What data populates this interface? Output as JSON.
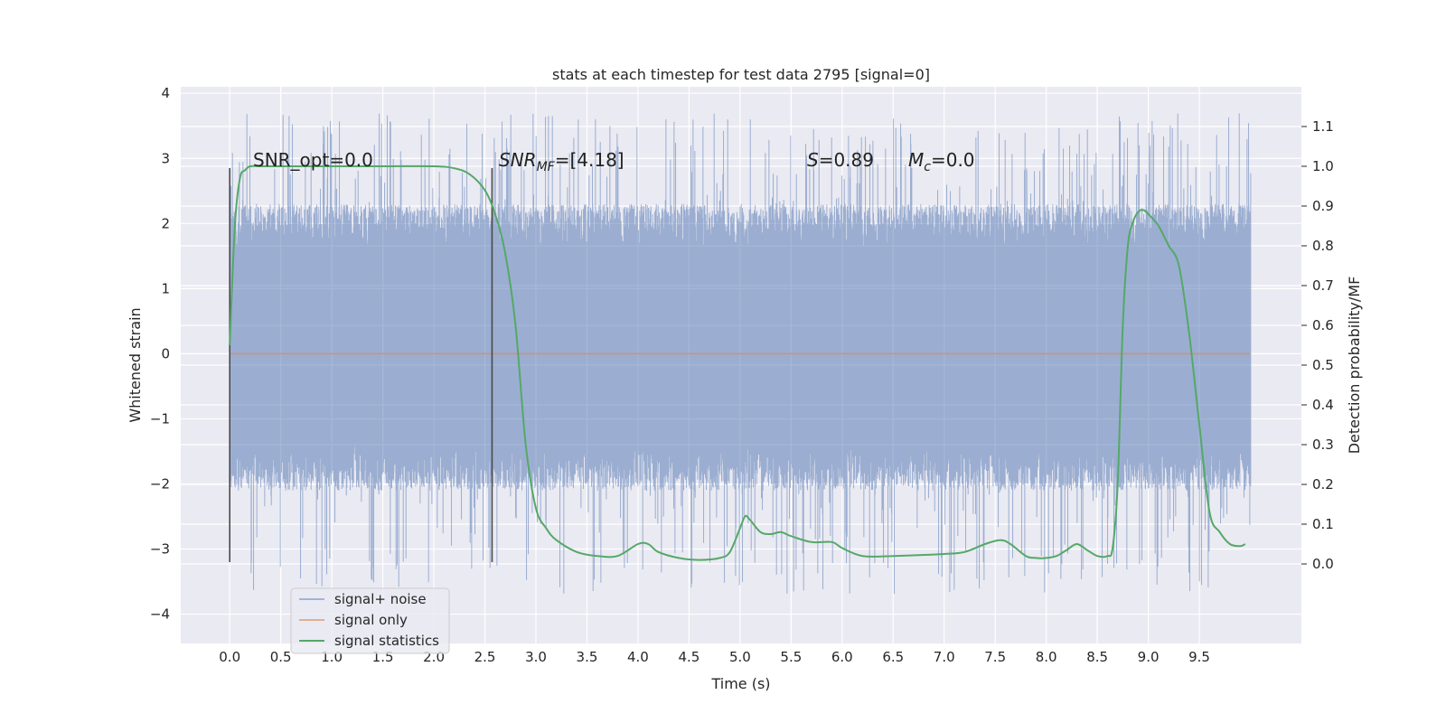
{
  "chart_data": {
    "type": "line",
    "title": "stats at each timestep for test data 2795 [signal=0]",
    "xlabel": "Time (s)",
    "ylabel": "Whitened strain",
    "ylabel_right": "Detection probability/MF",
    "xlim": [
      -0.48,
      10.5
    ],
    "ylim": [
      -4.45,
      4.1
    ],
    "ylim_right": [
      -0.2,
      1.2
    ],
    "x_ticks": [
      "0.0",
      "0.5",
      "1.0",
      "1.5",
      "2.0",
      "2.5",
      "3.0",
      "3.5",
      "4.0",
      "4.5",
      "5.0",
      "5.5",
      "6.0",
      "6.5",
      "7.0",
      "7.5",
      "8.0",
      "8.5",
      "9.0",
      "9.5"
    ],
    "y_ticks": [
      "4",
      "3",
      "2",
      "1",
      "0",
      "−1",
      "−2",
      "−3",
      "−4"
    ],
    "y_ticks_right": [
      "1.1",
      "1.0",
      "0.9",
      "0.8",
      "0.7",
      "0.6",
      "0.5",
      "0.4",
      "0.3",
      "0.2",
      "0.1",
      "0.0"
    ],
    "grid": true,
    "legend_position": "lower-left",
    "annotations": {
      "snr_opt": "SNR_opt=0.0",
      "snr_mf_base": "SNR",
      "snr_mf_sub": "MF",
      "snr_mf_value": "=[4.18]",
      "s_symbol": "S",
      "s_value": "=0.89",
      "mc_base": "M",
      "mc_sub": "c",
      "mc_value": "=0.0"
    },
    "vertical_markers": [
      {
        "x": 0.0,
        "y_range": [
          -3.2,
          2.85
        ]
      },
      {
        "x": 2.57,
        "y_range": [
          -3.2,
          2.85
        ]
      }
    ],
    "noise_envelope": {
      "duration": 10.0,
      "core_range": [
        -1.4,
        1.6
      ],
      "max_abs": 3.7
    },
    "series": [
      {
        "name": "signal+ noise",
        "color": "#4c72b0",
        "style": "whitened-noise-trace",
        "x_range": [
          0.0,
          10.0
        ]
      },
      {
        "name": "signal only",
        "color": "#dd8452",
        "x": [
          0.0,
          10.0
        ],
        "values": [
          0.0,
          0.0
        ]
      },
      {
        "name": "signal statistics",
        "color": "#55a868",
        "axis": "right",
        "x": [
          0.0,
          0.05,
          0.1,
          0.15,
          0.2,
          0.3,
          0.5,
          1.0,
          1.5,
          2.0,
          2.2,
          2.35,
          2.5,
          2.6,
          2.7,
          2.8,
          2.9,
          3.0,
          3.1,
          3.2,
          3.4,
          3.6,
          3.8,
          4.0,
          4.1,
          4.2,
          4.4,
          4.6,
          4.8,
          4.9,
          5.0,
          5.05,
          5.1,
          5.2,
          5.3,
          5.4,
          5.5,
          5.7,
          5.9,
          6.0,
          6.2,
          6.5,
          7.0,
          7.2,
          7.4,
          7.55,
          7.65,
          7.8,
          7.9,
          8.0,
          8.1,
          8.2,
          8.3,
          8.4,
          8.5,
          8.6,
          8.65,
          8.7,
          8.75,
          8.8,
          8.85,
          8.9,
          8.95,
          9.0,
          9.1,
          9.2,
          9.3,
          9.4,
          9.5,
          9.6,
          9.7,
          9.8,
          9.9,
          9.95
        ],
        "values": [
          0.55,
          0.85,
          0.97,
          0.99,
          1.0,
          1.0,
          1.0,
          1.0,
          1.0,
          1.0,
          0.995,
          0.98,
          0.94,
          0.88,
          0.78,
          0.6,
          0.3,
          0.14,
          0.09,
          0.06,
          0.03,
          0.02,
          0.02,
          0.05,
          0.05,
          0.03,
          0.015,
          0.01,
          0.015,
          0.03,
          0.09,
          0.12,
          0.11,
          0.08,
          0.075,
          0.08,
          0.07,
          0.055,
          0.055,
          0.04,
          0.02,
          0.02,
          0.025,
          0.03,
          0.05,
          0.06,
          0.05,
          0.02,
          0.015,
          0.015,
          0.02,
          0.035,
          0.05,
          0.035,
          0.02,
          0.02,
          0.04,
          0.2,
          0.6,
          0.8,
          0.86,
          0.885,
          0.89,
          0.88,
          0.85,
          0.8,
          0.75,
          0.58,
          0.35,
          0.13,
          0.08,
          0.05,
          0.045,
          0.05
        ]
      }
    ]
  }
}
